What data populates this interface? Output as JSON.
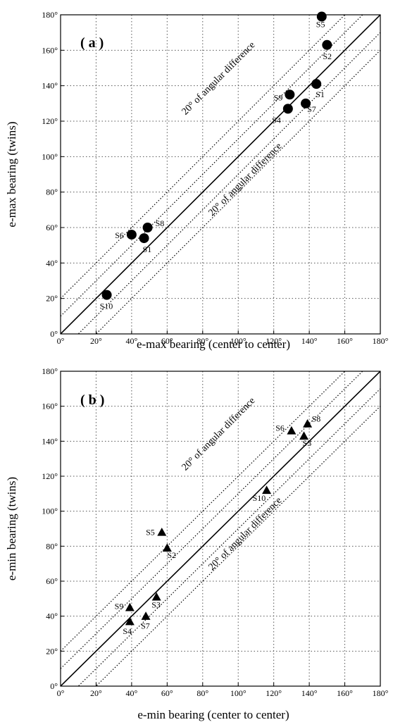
{
  "chart_data": [
    {
      "type": "scatter",
      "panel_label": "( a )",
      "xlabel": "e-max  bearing (center to center)",
      "ylabel": "e-max  bearing (twins)",
      "xlim": [
        0,
        180
      ],
      "ylim": [
        0,
        180
      ],
      "ticks": [
        "0°",
        "20°",
        "40°",
        "60°",
        "80°",
        "100°",
        "120°",
        "140°",
        "160°",
        "180°"
      ],
      "tick_values": [
        0,
        20,
        40,
        60,
        80,
        100,
        120,
        140,
        160,
        180
      ],
      "grid": true,
      "marker": "circle",
      "band_labels": [
        "20° of angular difference",
        "20° of angular difference"
      ],
      "points": [
        {
          "label": "S1",
          "x": 47,
          "y": 54
        },
        {
          "label": "S1",
          "x": 144,
          "y": 141
        },
        {
          "label": "S2",
          "x": 150,
          "y": 163
        },
        {
          "label": "S4",
          "x": 128,
          "y": 127
        },
        {
          "label": "S5",
          "x": 147,
          "y": 179
        },
        {
          "label": "S6",
          "x": 40,
          "y": 56
        },
        {
          "label": "S7",
          "x": 138,
          "y": 130
        },
        {
          "label": "S8",
          "x": 49,
          "y": 60
        },
        {
          "label": "S9",
          "x": 129,
          "y": 135
        },
        {
          "label": "S10",
          "x": 26,
          "y": 22
        }
      ]
    },
    {
      "type": "scatter",
      "panel_label": "( b )",
      "xlabel": "e-min  bearing (center to center)",
      "ylabel": "e-min bearing (twins)",
      "xlim": [
        0,
        180
      ],
      "ylim": [
        0,
        180
      ],
      "ticks": [
        "0°",
        "20°",
        "40°",
        "60°",
        "80°",
        "100°",
        "120°",
        "140°",
        "160°",
        "180°"
      ],
      "tick_values": [
        0,
        20,
        40,
        60,
        80,
        100,
        120,
        140,
        160,
        180
      ],
      "grid": true,
      "marker": "triangle",
      "band_labels": [
        "20° of angular difference",
        "20° of angular difference"
      ],
      "points": [
        {
          "label": "S2",
          "x": 60,
          "y": 79
        },
        {
          "label": "S3",
          "x": 54,
          "y": 51
        },
        {
          "label": "S3",
          "x": 137,
          "y": 143
        },
        {
          "label": "S4",
          "x": 39,
          "y": 37
        },
        {
          "label": "S5",
          "x": 57,
          "y": 88
        },
        {
          "label": "S6",
          "x": 130,
          "y": 146
        },
        {
          "label": "S7",
          "x": 48,
          "y": 40
        },
        {
          "label": "S8",
          "x": 139,
          "y": 150
        },
        {
          "label": "S9",
          "x": 39,
          "y": 45
        },
        {
          "label": "S10",
          "x": 116,
          "y": 112
        }
      ]
    }
  ]
}
